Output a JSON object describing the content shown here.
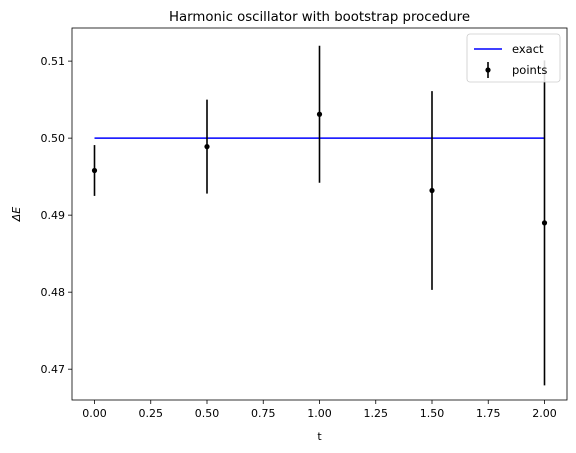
{
  "chart_data": {
    "type": "scatter",
    "title": "Harmonic oscillator with bootstrap procedure",
    "xlabel": "t",
    "ylabel": "ΔE",
    "xlim": [
      -0.1,
      2.1
    ],
    "ylim": [
      0.466,
      0.5143
    ],
    "xticks": [
      0.0,
      0.25,
      0.5,
      0.75,
      1.0,
      1.25,
      1.5,
      1.75,
      2.0
    ],
    "xtick_labels": [
      "0.00",
      "0.25",
      "0.50",
      "0.75",
      "1.00",
      "1.25",
      "1.50",
      "1.75",
      "2.00"
    ],
    "yticks": [
      0.47,
      0.48,
      0.49,
      0.5,
      0.51
    ],
    "ytick_labels": [
      "0.47",
      "0.48",
      "0.49",
      "0.50",
      "0.51"
    ],
    "grid": false,
    "legend_position": "top-right",
    "series": [
      {
        "name": "exact",
        "kind": "line",
        "color": "#0000ff",
        "x": [
          0.0,
          2.0
        ],
        "y": [
          0.5,
          0.5
        ]
      },
      {
        "name": "points",
        "kind": "errorbar",
        "color": "#000000",
        "x": [
          0.0,
          0.5,
          1.0,
          1.5,
          2.0
        ],
        "y": [
          0.4958,
          0.4989,
          0.5031,
          0.4932,
          0.489
        ],
        "yerr": [
          0.0033,
          0.0061,
          0.0089,
          0.0129,
          0.0211
        ]
      }
    ]
  }
}
